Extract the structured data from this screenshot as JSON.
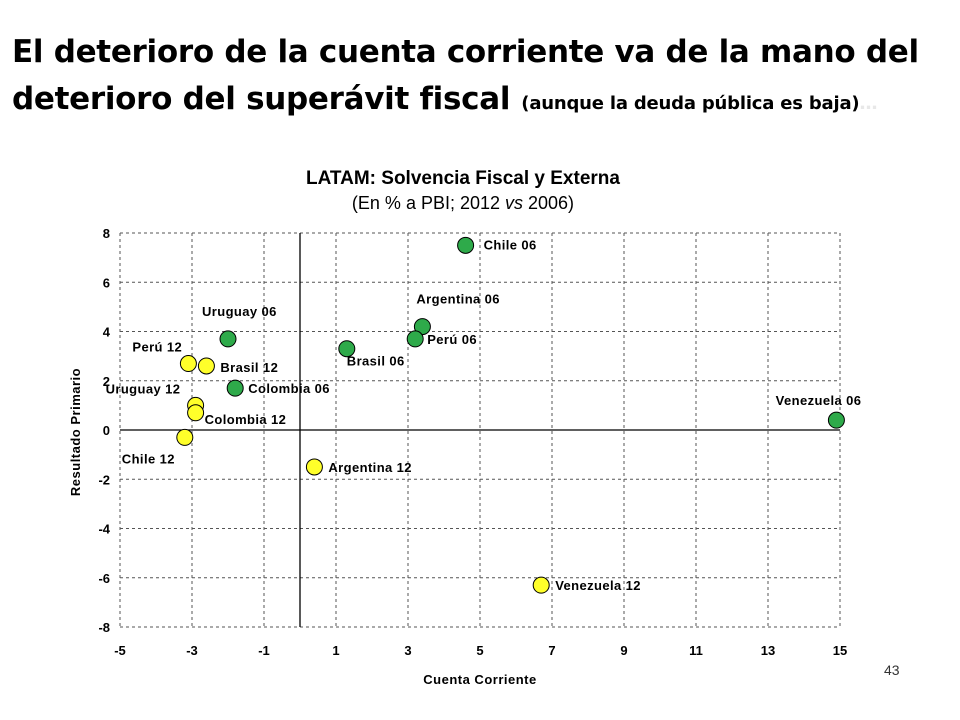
{
  "slide": {
    "title_line1": "El deterioro de la cuenta corriente va de la mano del",
    "title_line2": "deterioro del superávit fiscal",
    "title_paren": "(aunque  la deuda pública es baja)",
    "title_trail": "…",
    "page_number": "43"
  },
  "chart_data": {
    "type": "scatter",
    "title": "LATAM: Solvencia Fiscal y Externa",
    "subtitle_pre": "(En % a PBI; 2012 ",
    "subtitle_vs": "vs",
    "subtitle_post": " 2006)",
    "xlabel": "Cuenta Corriente",
    "ylabel": "Resultado Primario",
    "xlim": [
      -5,
      15
    ],
    "ylim": [
      -8,
      8
    ],
    "x_ticks": [
      "-5",
      "-3",
      "-1",
      "1",
      "3",
      "5",
      "7",
      "9",
      "11",
      "13",
      "15"
    ],
    "y_ticks": [
      "8",
      "6",
      "4",
      "2",
      "0",
      "-2",
      "-4",
      "-6",
      "-8"
    ],
    "grid": true,
    "colors": {
      "2006": "#2eaa4a",
      "2012": "#ffff2a"
    },
    "series": [
      {
        "year": "2006",
        "points": [
          {
            "label": "Chile 06",
            "x": 4.6,
            "y": 7.5
          },
          {
            "label": "Argentina 06",
            "x": 3.4,
            "y": 4.2
          },
          {
            "label": "Perú 06",
            "x": 3.2,
            "y": 3.7
          },
          {
            "label": "Uruguay 06",
            "x": -2.0,
            "y": 3.7
          },
          {
            "label": "Brasil 06",
            "x": 1.3,
            "y": 3.3
          },
          {
            "label": "Colombia 06",
            "x": -1.8,
            "y": 1.7
          },
          {
            "label": "Venezuela 06",
            "x": 14.9,
            "y": 0.4
          }
        ]
      },
      {
        "year": "2012",
        "points": [
          {
            "label": "Perú 12",
            "x": -3.1,
            "y": 2.7
          },
          {
            "label": "Brasil 12",
            "x": -2.6,
            "y": 2.6
          },
          {
            "label": "Uruguay 12",
            "x": -2.9,
            "y": 1.0
          },
          {
            "label": "Colombia 12",
            "x": -2.9,
            "y": 0.7
          },
          {
            "label": "Chile 12",
            "x": -3.2,
            "y": -0.3
          },
          {
            "label": "Argentina 12",
            "x": 0.4,
            "y": -1.5
          },
          {
            "label": "Venezuela 12",
            "x": 6.7,
            "y": -6.3
          }
        ]
      }
    ]
  }
}
